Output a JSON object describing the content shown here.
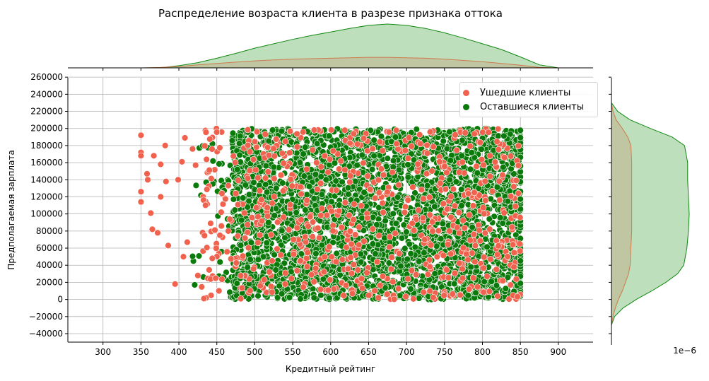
{
  "chart_data": {
    "type": "scatter",
    "title": "Распределение возраста клиента в разрезе признака оттока",
    "xlabel": "Кредитный рейтинг",
    "ylabel": "Предполагаемая зарплата",
    "xlim": [
      250,
      945
    ],
    "ylim": [
      -50000,
      260000
    ],
    "x_ticks": [
      "300",
      "350",
      "400",
      "450",
      "500",
      "550",
      "600",
      "650",
      "700",
      "750",
      "800",
      "850",
      "900"
    ],
    "y_ticks": [
      "−40000",
      "−20000",
      "0",
      "20000",
      "40000",
      "60000",
      "80000",
      "100000",
      "120000",
      "140000",
      "160000",
      "180000",
      "200000",
      "220000",
      "240000",
      "260000"
    ],
    "grid": true,
    "legend_position": "top-right",
    "marginal_y_offset_label": "1e−6",
    "series": [
      {
        "name": "Ушедшие клиенты",
        "color": "#f0624d",
        "x_range": [
          350,
          850
        ],
        "y_range": [
          0,
          200000
        ],
        "sample_points": [
          {
            "x": 350,
            "y": 192000
          },
          {
            "x": 350,
            "y": 172000
          },
          {
            "x": 350,
            "y": 168000
          },
          {
            "x": 350,
            "y": 126000
          },
          {
            "x": 350,
            "y": 114000
          },
          {
            "x": 358,
            "y": 147000
          },
          {
            "x": 359,
            "y": 140000
          },
          {
            "x": 363,
            "y": 101000
          },
          {
            "x": 365,
            "y": 82000
          },
          {
            "x": 367,
            "y": 168000
          },
          {
            "x": 372,
            "y": 78000
          },
          {
            "x": 376,
            "y": 120000
          },
          {
            "x": 376,
            "y": 158000
          },
          {
            "x": 382,
            "y": 180000
          },
          {
            "x": 383,
            "y": 138000
          },
          {
            "x": 386,
            "y": 63000
          },
          {
            "x": 395,
            "y": 18000
          },
          {
            "x": 399,
            "y": 140000
          },
          {
            "x": 404,
            "y": 161000
          },
          {
            "x": 406,
            "y": 50000
          },
          {
            "x": 408,
            "y": 189000
          },
          {
            "x": 411,
            "y": 67000
          },
          {
            "x": 418,
            "y": 176000
          },
          {
            "x": 422,
            "y": 157000
          },
          {
            "x": 425,
            "y": 28000
          },
          {
            "x": 433,
            "y": 1000
          }
        ]
      },
      {
        "name": "Оставшиеся клиенты",
        "color": "#0a7a0a",
        "x_range": [
          405,
          850
        ],
        "y_range": [
          0,
          200000
        ]
      }
    ],
    "marginal_x_kde": {
      "x": [
        350,
        375,
        400,
        425,
        450,
        475,
        500,
        525,
        550,
        575,
        600,
        625,
        650,
        675,
        700,
        725,
        750,
        775,
        800,
        825,
        850,
        875,
        900
      ],
      "retained": [
        0.0,
        0.0,
        0.05,
        0.12,
        0.22,
        0.33,
        0.45,
        0.55,
        0.65,
        0.74,
        0.82,
        0.9,
        0.97,
        1.0,
        0.97,
        0.9,
        0.8,
        0.68,
        0.55,
        0.42,
        0.25,
        0.07,
        0.0
      ],
      "churned": [
        0.0,
        0.01,
        0.03,
        0.07,
        0.1,
        0.13,
        0.16,
        0.18,
        0.2,
        0.21,
        0.22,
        0.23,
        0.24,
        0.24,
        0.23,
        0.22,
        0.2,
        0.17,
        0.14,
        0.1,
        0.06,
        0.01,
        0.0
      ]
    },
    "marginal_y_kde": {
      "y": [
        -30000,
        -20000,
        -10000,
        0,
        10000,
        20000,
        30000,
        40000,
        60000,
        80000,
        100000,
        120000,
        140000,
        160000,
        180000,
        190000,
        200000,
        210000,
        220000,
        230000
      ],
      "retained": [
        0.0,
        0.04,
        0.15,
        0.32,
        0.52,
        0.7,
        0.85,
        0.93,
        0.97,
        0.99,
        1.0,
        0.99,
        0.98,
        0.98,
        0.94,
        0.78,
        0.5,
        0.24,
        0.08,
        0.0
      ],
      "churned": [
        0.0,
        0.02,
        0.05,
        0.09,
        0.14,
        0.18,
        0.22,
        0.24,
        0.25,
        0.26,
        0.26,
        0.26,
        0.26,
        0.26,
        0.25,
        0.21,
        0.14,
        0.06,
        0.02,
        0.0
      ]
    },
    "fill_colors": {
      "retained_fill": "#bddfbc",
      "retained_line": "#118811",
      "churned_fill": "#c0c39d",
      "churned_line": "#cd7a4e"
    }
  }
}
